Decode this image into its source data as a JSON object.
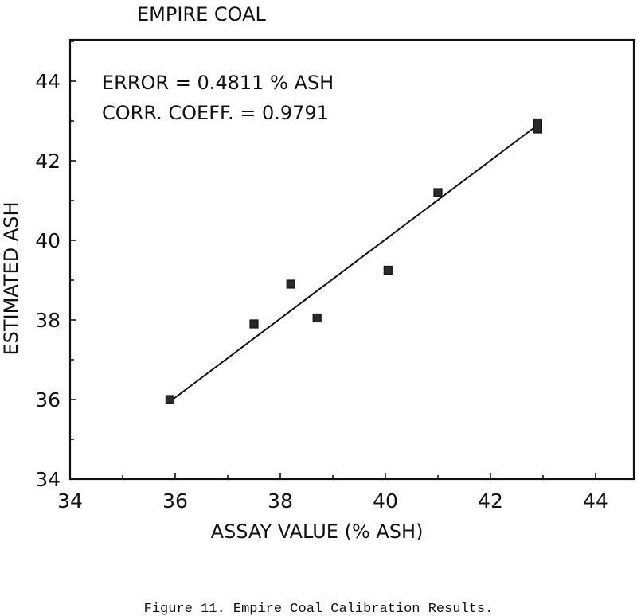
{
  "title": "EMPIRE COAL",
  "caption": "Figure 11.  Empire Coal Calibration Results.",
  "annotations": {
    "error": "ERROR = 0.4811 % ASH",
    "corr": "CORR. COEFF. = 0.9791"
  },
  "chart_data": {
    "type": "scatter",
    "title": "EMPIRE COAL",
    "xlabel": "ASSAY VALUE (% ASH)",
    "ylabel": "ESTIMATED ASH",
    "xlim": [
      34,
      45
    ],
    "ylim": [
      34,
      45
    ],
    "x_ticks": [
      34,
      36,
      38,
      40,
      42,
      44
    ],
    "y_ticks": [
      34,
      36,
      38,
      40,
      42,
      44
    ],
    "grid": false,
    "points": [
      {
        "x": 35.9,
        "y": 36.0
      },
      {
        "x": 37.5,
        "y": 37.9
      },
      {
        "x": 38.2,
        "y": 38.9
      },
      {
        "x": 38.7,
        "y": 38.05
      },
      {
        "x": 40.05,
        "y": 39.25
      },
      {
        "x": 41.0,
        "y": 41.2
      },
      {
        "x": 42.9,
        "y": 42.8
      },
      {
        "x": 42.9,
        "y": 42.95
      }
    ],
    "fit_line": {
      "x": [
        35.9,
        42.9
      ],
      "y": [
        35.95,
        42.9
      ]
    }
  }
}
